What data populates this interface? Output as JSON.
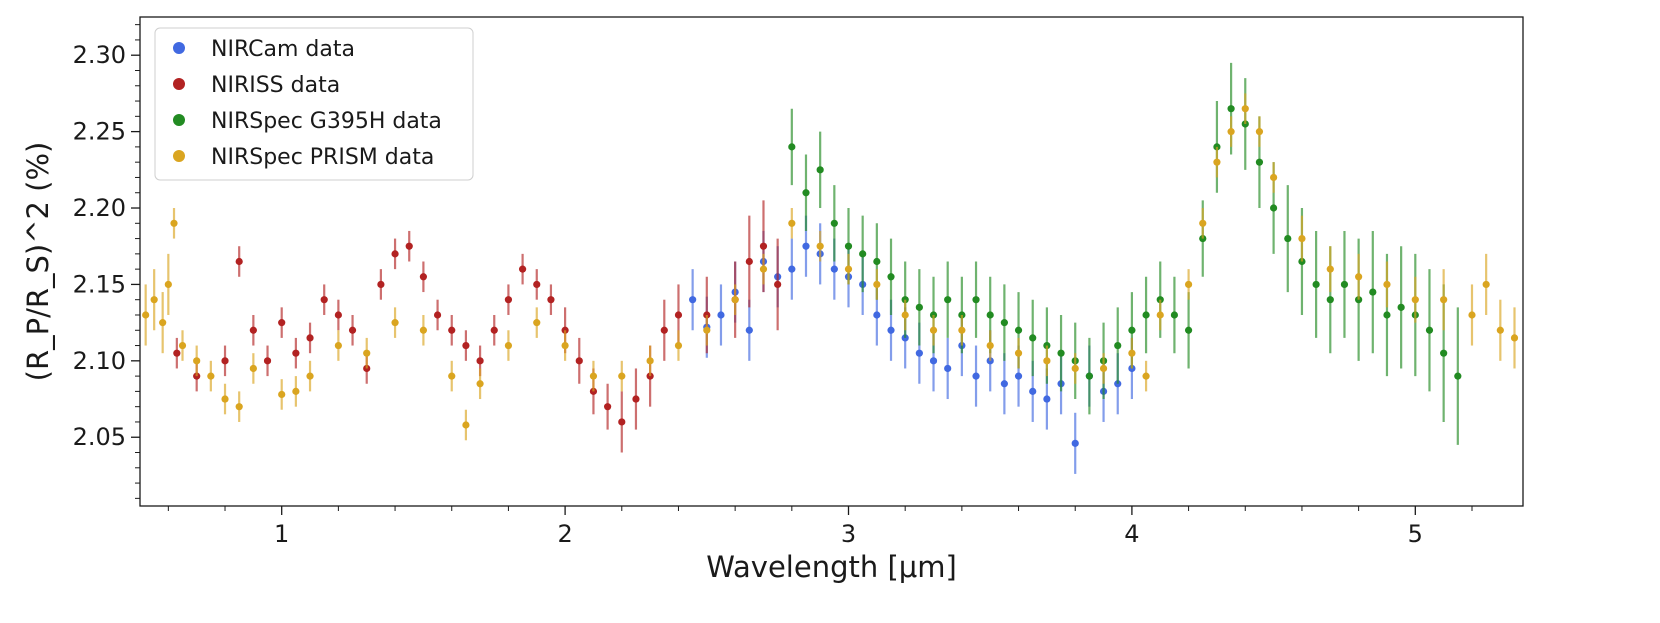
{
  "chart_data": {
    "type": "scatter",
    "title": "",
    "xlabel": "Wavelength [μm]",
    "ylabel": "(R_P/R_S)^2 (%)",
    "xlim": [
      0.5,
      5.38
    ],
    "ylim": [
      2.005,
      2.325
    ],
    "xticks": [
      1,
      2,
      3,
      4,
      5
    ],
    "xtick_labels": [
      "1",
      "2",
      "3",
      "4",
      "5"
    ],
    "yticks": [
      2.05,
      2.1,
      2.15,
      2.2,
      2.25,
      2.3
    ],
    "ytick_labels": [
      "2.05",
      "2.10",
      "2.15",
      "2.20",
      "2.25",
      "2.30"
    ],
    "legend_position": "top-left",
    "series": [
      {
        "name": "NIRCam data",
        "color": "#4169e1",
        "points": [
          [
            2.45,
            2.14,
            0.02
          ],
          [
            2.5,
            2.122,
            0.02
          ],
          [
            2.55,
            2.13,
            0.02
          ],
          [
            2.6,
            2.145,
            0.02
          ],
          [
            2.65,
            2.12,
            0.02
          ],
          [
            2.7,
            2.165,
            0.02
          ],
          [
            2.75,
            2.155,
            0.02
          ],
          [
            2.8,
            2.16,
            0.02
          ],
          [
            2.85,
            2.175,
            0.02
          ],
          [
            2.9,
            2.17,
            0.02
          ],
          [
            2.95,
            2.16,
            0.02
          ],
          [
            3.0,
            2.155,
            0.02
          ],
          [
            3.05,
            2.15,
            0.02
          ],
          [
            3.1,
            2.13,
            0.02
          ],
          [
            3.15,
            2.12,
            0.02
          ],
          [
            3.2,
            2.115,
            0.02
          ],
          [
            3.25,
            2.105,
            0.02
          ],
          [
            3.3,
            2.1,
            0.02
          ],
          [
            3.35,
            2.095,
            0.02
          ],
          [
            3.4,
            2.11,
            0.02
          ],
          [
            3.45,
            2.09,
            0.02
          ],
          [
            3.5,
            2.1,
            0.02
          ],
          [
            3.55,
            2.085,
            0.02
          ],
          [
            3.6,
            2.09,
            0.02
          ],
          [
            3.65,
            2.08,
            0.02
          ],
          [
            3.7,
            2.075,
            0.02
          ],
          [
            3.75,
            2.085,
            0.02
          ],
          [
            3.8,
            2.046,
            0.02
          ],
          [
            3.85,
            2.09,
            0.02
          ],
          [
            3.9,
            2.08,
            0.02
          ],
          [
            3.95,
            2.085,
            0.02
          ],
          [
            4.0,
            2.095,
            0.02
          ]
        ]
      },
      {
        "name": "NIRISS data",
        "color": "#b22222",
        "points": [
          [
            0.63,
            2.105,
            0.01
          ],
          [
            0.7,
            2.09,
            0.01
          ],
          [
            0.8,
            2.1,
            0.01
          ],
          [
            0.85,
            2.165,
            0.01
          ],
          [
            0.9,
            2.12,
            0.01
          ],
          [
            0.95,
            2.1,
            0.01
          ],
          [
            1.0,
            2.125,
            0.01
          ],
          [
            1.05,
            2.105,
            0.01
          ],
          [
            1.1,
            2.115,
            0.01
          ],
          [
            1.15,
            2.14,
            0.01
          ],
          [
            1.2,
            2.13,
            0.01
          ],
          [
            1.25,
            2.12,
            0.01
          ],
          [
            1.3,
            2.095,
            0.01
          ],
          [
            1.35,
            2.15,
            0.01
          ],
          [
            1.4,
            2.17,
            0.01
          ],
          [
            1.45,
            2.175,
            0.01
          ],
          [
            1.5,
            2.155,
            0.01
          ],
          [
            1.55,
            2.13,
            0.01
          ],
          [
            1.6,
            2.12,
            0.01
          ],
          [
            1.65,
            2.11,
            0.01
          ],
          [
            1.7,
            2.1,
            0.01
          ],
          [
            1.75,
            2.12,
            0.01
          ],
          [
            1.8,
            2.14,
            0.01
          ],
          [
            1.85,
            2.16,
            0.01
          ],
          [
            1.9,
            2.15,
            0.01
          ],
          [
            1.95,
            2.14,
            0.01
          ],
          [
            2.0,
            2.12,
            0.015
          ],
          [
            2.05,
            2.1,
            0.015
          ],
          [
            2.1,
            2.08,
            0.015
          ],
          [
            2.15,
            2.07,
            0.015
          ],
          [
            2.2,
            2.06,
            0.02
          ],
          [
            2.25,
            2.075,
            0.02
          ],
          [
            2.3,
            2.09,
            0.02
          ],
          [
            2.35,
            2.12,
            0.02
          ],
          [
            2.4,
            2.13,
            0.02
          ],
          [
            2.5,
            2.13,
            0.025
          ],
          [
            2.6,
            2.14,
            0.025
          ],
          [
            2.65,
            2.165,
            0.03
          ],
          [
            2.7,
            2.175,
            0.03
          ],
          [
            2.75,
            2.15,
            0.03
          ]
        ]
      },
      {
        "name": "NIRSpec G395H data",
        "color": "#228b22",
        "points": [
          [
            2.8,
            2.24,
            0.025
          ],
          [
            2.85,
            2.21,
            0.025
          ],
          [
            2.9,
            2.225,
            0.025
          ],
          [
            2.95,
            2.19,
            0.025
          ],
          [
            3.0,
            2.175,
            0.025
          ],
          [
            3.05,
            2.17,
            0.025
          ],
          [
            3.1,
            2.165,
            0.025
          ],
          [
            3.15,
            2.155,
            0.025
          ],
          [
            3.2,
            2.14,
            0.025
          ],
          [
            3.25,
            2.135,
            0.025
          ],
          [
            3.3,
            2.13,
            0.025
          ],
          [
            3.35,
            2.14,
            0.025
          ],
          [
            3.4,
            2.13,
            0.025
          ],
          [
            3.45,
            2.14,
            0.025
          ],
          [
            3.5,
            2.13,
            0.025
          ],
          [
            3.55,
            2.125,
            0.025
          ],
          [
            3.6,
            2.12,
            0.025
          ],
          [
            3.65,
            2.115,
            0.025
          ],
          [
            3.7,
            2.11,
            0.025
          ],
          [
            3.75,
            2.105,
            0.025
          ],
          [
            3.8,
            2.1,
            0.025
          ],
          [
            3.85,
            2.09,
            0.025
          ],
          [
            3.9,
            2.1,
            0.025
          ],
          [
            3.95,
            2.11,
            0.025
          ],
          [
            4.0,
            2.12,
            0.025
          ],
          [
            4.05,
            2.13,
            0.025
          ],
          [
            4.1,
            2.14,
            0.025
          ],
          [
            4.15,
            2.13,
            0.025
          ],
          [
            4.2,
            2.12,
            0.025
          ],
          [
            4.25,
            2.18,
            0.025
          ],
          [
            4.3,
            2.24,
            0.03
          ],
          [
            4.35,
            2.265,
            0.03
          ],
          [
            4.4,
            2.255,
            0.03
          ],
          [
            4.45,
            2.23,
            0.03
          ],
          [
            4.5,
            2.2,
            0.03
          ],
          [
            4.55,
            2.18,
            0.035
          ],
          [
            4.6,
            2.165,
            0.035
          ],
          [
            4.65,
            2.15,
            0.035
          ],
          [
            4.7,
            2.14,
            0.035
          ],
          [
            4.75,
            2.15,
            0.035
          ],
          [
            4.8,
            2.14,
            0.04
          ],
          [
            4.85,
            2.145,
            0.04
          ],
          [
            4.9,
            2.13,
            0.04
          ],
          [
            4.95,
            2.135,
            0.04
          ],
          [
            5.0,
            2.13,
            0.04
          ],
          [
            5.05,
            2.12,
            0.04
          ],
          [
            5.1,
            2.105,
            0.045
          ],
          [
            5.15,
            2.09,
            0.045
          ]
        ]
      },
      {
        "name": "NIRSpec PRISM data",
        "color": "#daa520",
        "points": [
          [
            0.52,
            2.13,
            0.02
          ],
          [
            0.55,
            2.14,
            0.02
          ],
          [
            0.58,
            2.125,
            0.02
          ],
          [
            0.6,
            2.15,
            0.02
          ],
          [
            0.62,
            2.19,
            0.01
          ],
          [
            0.65,
            2.11,
            0.01
          ],
          [
            0.7,
            2.1,
            0.01
          ],
          [
            0.75,
            2.09,
            0.01
          ],
          [
            0.8,
            2.075,
            0.01
          ],
          [
            0.85,
            2.07,
            0.01
          ],
          [
            0.9,
            2.095,
            0.01
          ],
          [
            1.0,
            2.078,
            0.01
          ],
          [
            1.05,
            2.08,
            0.01
          ],
          [
            1.1,
            2.09,
            0.01
          ],
          [
            1.2,
            2.11,
            0.01
          ],
          [
            1.3,
            2.105,
            0.01
          ],
          [
            1.4,
            2.125,
            0.01
          ],
          [
            1.5,
            2.12,
            0.01
          ],
          [
            1.6,
            2.09,
            0.01
          ],
          [
            1.65,
            2.058,
            0.01
          ],
          [
            1.7,
            2.085,
            0.01
          ],
          [
            1.8,
            2.11,
            0.01
          ],
          [
            1.9,
            2.125,
            0.01
          ],
          [
            2.0,
            2.11,
            0.01
          ],
          [
            2.1,
            2.09,
            0.01
          ],
          [
            2.2,
            2.09,
            0.01
          ],
          [
            2.3,
            2.1,
            0.01
          ],
          [
            2.4,
            2.11,
            0.01
          ],
          [
            2.5,
            2.12,
            0.01
          ],
          [
            2.6,
            2.14,
            0.01
          ],
          [
            2.7,
            2.16,
            0.01
          ],
          [
            2.8,
            2.19,
            0.01
          ],
          [
            2.9,
            2.175,
            0.01
          ],
          [
            3.0,
            2.16,
            0.01
          ],
          [
            3.1,
            2.15,
            0.01
          ],
          [
            3.2,
            2.13,
            0.01
          ],
          [
            3.3,
            2.12,
            0.01
          ],
          [
            3.4,
            2.12,
            0.01
          ],
          [
            3.5,
            2.11,
            0.01
          ],
          [
            3.6,
            2.105,
            0.01
          ],
          [
            3.7,
            2.1,
            0.01
          ],
          [
            3.8,
            2.095,
            0.01
          ],
          [
            3.9,
            2.095,
            0.01
          ],
          [
            4.0,
            2.105,
            0.01
          ],
          [
            4.05,
            2.09,
            0.01
          ],
          [
            4.1,
            2.13,
            0.01
          ],
          [
            4.2,
            2.15,
            0.01
          ],
          [
            4.25,
            2.19,
            0.01
          ],
          [
            4.3,
            2.23,
            0.01
          ],
          [
            4.35,
            2.25,
            0.01
          ],
          [
            4.4,
            2.265,
            0.01
          ],
          [
            4.45,
            2.25,
            0.01
          ],
          [
            4.5,
            2.22,
            0.01
          ],
          [
            4.6,
            2.18,
            0.015
          ],
          [
            4.7,
            2.16,
            0.015
          ],
          [
            4.8,
            2.155,
            0.015
          ],
          [
            4.9,
            2.15,
            0.015
          ],
          [
            5.0,
            2.14,
            0.015
          ],
          [
            5.1,
            2.14,
            0.02
          ],
          [
            5.2,
            2.13,
            0.02
          ],
          [
            5.25,
            2.15,
            0.02
          ],
          [
            5.3,
            2.12,
            0.02
          ],
          [
            5.35,
            2.115,
            0.02
          ]
        ]
      }
    ]
  }
}
